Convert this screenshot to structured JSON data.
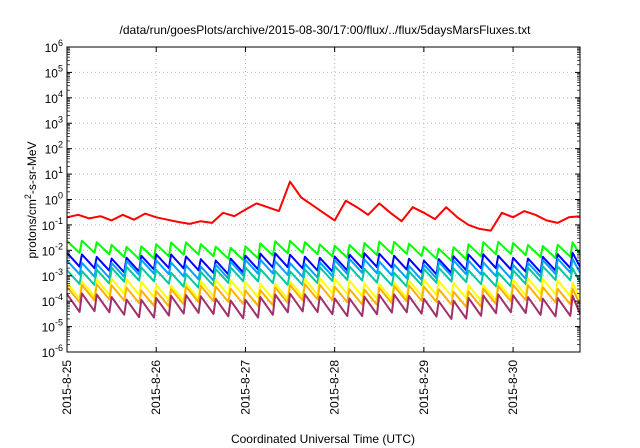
{
  "chart_data": {
    "type": "line",
    "title": "/data/run/goesPlots/archive/2015-08-30/17:00/flux/../flux/5daysMarsFluxes.txt",
    "xlabel": "Coordinated Universal Time (UTC)",
    "ylabel": "protons/cm²-s-sr-MeV",
    "ylabel_parts": {
      "pre": "protons/cm",
      "sup": "2",
      "post": "-s-sr-MeV"
    },
    "y_scale": "log",
    "ylim": [
      1e-06,
      1000000.0
    ],
    "y_ticks": [
      {
        "base": "10",
        "exp": "-6"
      },
      {
        "base": "10",
        "exp": "-5"
      },
      {
        "base": "10",
        "exp": "-4"
      },
      {
        "base": "10",
        "exp": "-3"
      },
      {
        "base": "10",
        "exp": "-2"
      },
      {
        "base": "10",
        "exp": "-1"
      },
      {
        "base": "10",
        "exp": "0"
      },
      {
        "base": "10",
        "exp": "1"
      },
      {
        "base": "10",
        "exp": "2"
      },
      {
        "base": "10",
        "exp": "3"
      },
      {
        "base": "10",
        "exp": "4"
      },
      {
        "base": "10",
        "exp": "5"
      },
      {
        "base": "10",
        "exp": "6"
      }
    ],
    "xlim": [
      "2015-08-25",
      "2015-08-30T18:00"
    ],
    "x_ticks": [
      "2015-8-25",
      "2015-8-26",
      "2015-8-27",
      "2015-8-28",
      "2015-8-29",
      "2015-8-30"
    ],
    "grid": true,
    "legend": "none",
    "series": [
      {
        "color": "#ff0000",
        "x": [
          "2015-08-25T00:00",
          "2015-08-25T03:00",
          "2015-08-25T06:00",
          "2015-08-25T09:00",
          "2015-08-25T12:00",
          "2015-08-25T15:00",
          "2015-08-25T18:00",
          "2015-08-25T21:00",
          "2015-08-26T00:00",
          "2015-08-26T03:00",
          "2015-08-26T06:00",
          "2015-08-26T09:00",
          "2015-08-26T12:00",
          "2015-08-26T15:00",
          "2015-08-26T18:00",
          "2015-08-26T21:00",
          "2015-08-27T00:00",
          "2015-08-27T03:00",
          "2015-08-27T06:00",
          "2015-08-27T09:00",
          "2015-08-27T12:00",
          "2015-08-27T15:00",
          "2015-08-27T18:00",
          "2015-08-27T21:00",
          "2015-08-28T00:00",
          "2015-08-28T03:00",
          "2015-08-28T06:00",
          "2015-08-28T09:00",
          "2015-08-28T12:00",
          "2015-08-28T15:00",
          "2015-08-28T18:00",
          "2015-08-28T21:00",
          "2015-08-29T00:00",
          "2015-08-29T03:00",
          "2015-08-29T06:00",
          "2015-08-29T09:00",
          "2015-08-29T12:00",
          "2015-08-29T15:00",
          "2015-08-29T18:00",
          "2015-08-29T21:00",
          "2015-08-30T00:00",
          "2015-08-30T03:00",
          "2015-08-30T06:00",
          "2015-08-30T09:00",
          "2015-08-30T12:00",
          "2015-08-30T15:00",
          "2015-08-30T18:00"
        ],
        "values": [
          0.2,
          0.25,
          0.18,
          0.22,
          0.15,
          0.25,
          0.16,
          0.28,
          0.2,
          0.16,
          0.13,
          0.11,
          0.14,
          0.12,
          0.3,
          0.22,
          0.4,
          0.7,
          0.5,
          0.35,
          5.0,
          1.2,
          0.6,
          0.3,
          0.15,
          0.9,
          0.5,
          0.25,
          0.7,
          0.3,
          0.14,
          0.5,
          0.3,
          0.17,
          0.5,
          0.2,
          0.1,
          0.07,
          0.06,
          0.3,
          0.2,
          0.35,
          0.25,
          0.15,
          0.12,
          0.2,
          0.22
        ]
      },
      {
        "color": "#00ff00",
        "base": 0.018,
        "cycle_hours": 4,
        "drop": 3.0,
        "x_start": "2015-08-25T00:00",
        "x_end": "2015-08-30T18:00"
      },
      {
        "color": "#0000ff",
        "base": 0.006,
        "cycle_hours": 4,
        "drop": 3.5,
        "x_start": "2015-08-25T00:00",
        "x_end": "2015-08-30T18:00"
      },
      {
        "color": "#00a0ff",
        "base": 0.0035,
        "cycle_hours": 4,
        "drop": 3.5,
        "x_start": "2015-08-25T00:00",
        "x_end": "2015-08-30T18:00"
      },
      {
        "color": "#00c8a0",
        "base": 0.0018,
        "cycle_hours": 4,
        "drop": 3.5,
        "x_start": "2015-08-25T00:00",
        "x_end": "2015-08-30T18:00"
      },
      {
        "color": "#ffff00",
        "base": 0.0006,
        "cycle_hours": 4,
        "drop": 4.0,
        "x_start": "2015-08-25T00:00",
        "x_end": "2015-08-30T18:00"
      },
      {
        "color": "#ffb000",
        "base": 0.00035,
        "cycle_hours": 4,
        "drop": 4.0,
        "x_start": "2015-08-25T00:00",
        "x_end": "2015-08-30T18:00"
      },
      {
        "color": "#a0306a",
        "base": 0.00015,
        "cycle_hours": 4,
        "drop": 5.0,
        "x_start": "2015-08-25T00:00",
        "x_end": "2015-08-30T18:00"
      }
    ]
  }
}
